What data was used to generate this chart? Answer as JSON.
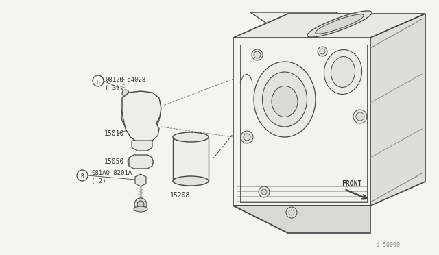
{
  "background_color": "#f5f5f0",
  "line_color": "#444444",
  "fig_width": 6.4,
  "fig_height": 3.72,
  "dpi": 100,
  "labels": {
    "part1_num": "08120-64028",
    "part1_qty": "( 3)",
    "part2_num": "15010",
    "part3_num": "15050",
    "part4_num": "081A0-8201A",
    "part4_qty": "( 2)",
    "part5_num": "15208",
    "front_label": "FRONT",
    "diagram_num": "s 50000"
  }
}
